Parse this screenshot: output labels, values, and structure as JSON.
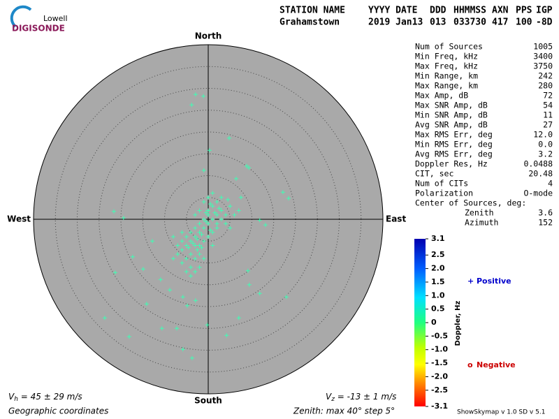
{
  "logo": {
    "top": "Lowell",
    "bottom": "DIGISONDE"
  },
  "header": {
    "columns": [
      "STATION NAME",
      "YYYY DATE",
      "DDD",
      "HHMMSS",
      "AXN",
      "PPS",
      "IGP"
    ],
    "values": [
      "Grahamstown",
      "2019 Jan13",
      "013",
      "033730",
      "417",
      "100",
      "-8D"
    ]
  },
  "stats": [
    [
      "Num of Sources",
      "1005"
    ],
    [
      "Min Freq, kHz",
      "3400"
    ],
    [
      "Max Freq, kHz",
      "3750"
    ],
    [
      "Min Range, km",
      "242"
    ],
    [
      "Max Range, km",
      "280"
    ],
    [
      "Max Amp, dB",
      "72"
    ],
    [
      "Max SNR Amp, dB",
      "54"
    ],
    [
      "Min SNR Amp, dB",
      "11"
    ],
    [
      "Avg SNR Amp, dB",
      "27"
    ],
    [
      "Max RMS Err, deg",
      "12.0"
    ],
    [
      "Min RMS Err, deg",
      "0.0"
    ],
    [
      "Avg RMS Err, deg",
      "3.2"
    ],
    [
      "Doppler Res, Hz",
      "0.0488"
    ],
    [
      "CIT, sec",
      "20.48"
    ],
    [
      "Num of CITs",
      "4"
    ],
    [
      "Polarization",
      "O-mode"
    ]
  ],
  "center": {
    "title": "Center of Sources, deg:",
    "rows": [
      [
        "Zenith",
        "3.6"
      ],
      [
        "Azimuth",
        "152"
      ]
    ]
  },
  "footer": {
    "vh": [
      "V",
      "h",
      " = 45 ± 29 m/s"
    ],
    "vz": [
      "V",
      "z",
      " = -13 ± 1 m/s"
    ],
    "coords": "Geographic coordinates",
    "zenith": "Zenith: max 40°  step 5°",
    "version": "ShowSkymap v 1.0  SD v 5.1"
  },
  "chart_data": {
    "type": "scatter",
    "directions": {
      "north": "North",
      "south": "South",
      "east": "East",
      "west": "West"
    },
    "rlim": [
      0,
      40
    ],
    "rticks": [
      5,
      10,
      15,
      20,
      25,
      30,
      35
    ],
    "point_color": "#3dffb4",
    "series": [
      {
        "name": "Positive",
        "symbol": "+",
        "color": "#0000cc",
        "x": [
          -1,
          -2,
          -3,
          0,
          1,
          2,
          -1,
          0,
          1,
          -2,
          -4,
          -5,
          -3,
          -4,
          -5,
          -6,
          -2,
          -3,
          -6,
          -5,
          -4,
          -7,
          -1,
          0,
          2,
          3,
          4,
          3,
          2,
          0,
          -1,
          1,
          3,
          5,
          6,
          4,
          1,
          -2,
          -3,
          -4,
          -6,
          -7,
          -8,
          -2,
          -3,
          0,
          2,
          1,
          -1,
          -3,
          -5,
          0.5,
          -0.5,
          1.5,
          -1.5,
          -2.5,
          -3.5,
          -4.5,
          -2.5,
          -1.5,
          0.5,
          2.5,
          4.5,
          -0.5,
          -6,
          -8,
          -4,
          -2,
          5,
          7,
          -2.9,
          -3.8,
          -1.1,
          4.8,
          9.3,
          17.1,
          18.4,
          -21.6,
          -19.4,
          -21.3,
          -23.7,
          -18.1,
          -3.7,
          -5.8,
          4.2,
          7,
          11.8,
          17.9,
          -14.1,
          -0.2,
          9.1,
          9.4,
          -10.6,
          -7.2,
          0.3,
          -1,
          8.8,
          6.4,
          7.5,
          11.8,
          13.1,
          -12.8,
          -17.3,
          -14.9,
          -10.9,
          -8.8,
          -5.8,
          -2.9,
          -4.8
        ],
        "y": [
          -2,
          -3,
          -4,
          -1,
          0,
          1,
          0,
          2,
          3,
          -1,
          -5,
          -6,
          -6,
          -8,
          -9,
          -7,
          -6,
          -9,
          -10,
          -12,
          -11,
          -8,
          -5,
          -4,
          -2,
          0,
          1,
          2,
          4,
          5,
          4,
          6,
          5,
          3,
          1,
          -1,
          -3,
          -8,
          -2,
          -3,
          -5,
          -6,
          -9,
          2,
          1,
          1,
          -1,
          -6,
          -9,
          -12,
          -4,
          3.5,
          1.5,
          1.5,
          -3.5,
          -4.5,
          -5.5,
          -6.5,
          -7,
          -6.5,
          -2.5,
          2.5,
          4.5,
          -0.5,
          -3,
          -4,
          -13,
          -11,
          -2,
          2,
          28.6,
          26.2,
          28.2,
          18.6,
          11.8,
          6.2,
          4.8,
          1.8,
          0.3,
          -12.2,
          -22.6,
          -26.9,
          -31.8,
          -29.8,
          -26.6,
          -22.6,
          -17,
          -17.8,
          -19.4,
          -24.2,
          -11.8,
          -15,
          -25,
          -25,
          15.8,
          11.2,
          12.2,
          9.3,
          5,
          -0.2,
          -1.3,
          -5,
          -8.6,
          -11.4,
          -13.8,
          -16.2,
          -17.8,
          -18.6,
          -19.8
        ]
      },
      {
        "name": "Negative",
        "symbol": "o",
        "color": "#cc0000",
        "x": [],
        "y": []
      }
    ],
    "colorbar": {
      "label": "Doppler, Hz",
      "lim": [
        -3.1,
        3.1
      ],
      "ticks": [
        3.1,
        2.5,
        {
          "value": 2,
          "label": "2.0"
        },
        1.5,
        {
          "value": 1,
          "label": "1.0"
        },
        0.5,
        0,
        -0.5,
        {
          "value": -1,
          "label": "-1.0"
        },
        -1.5,
        {
          "value": -2,
          "label": "-2.0"
        },
        -2.5,
        -3.1
      ]
    }
  }
}
